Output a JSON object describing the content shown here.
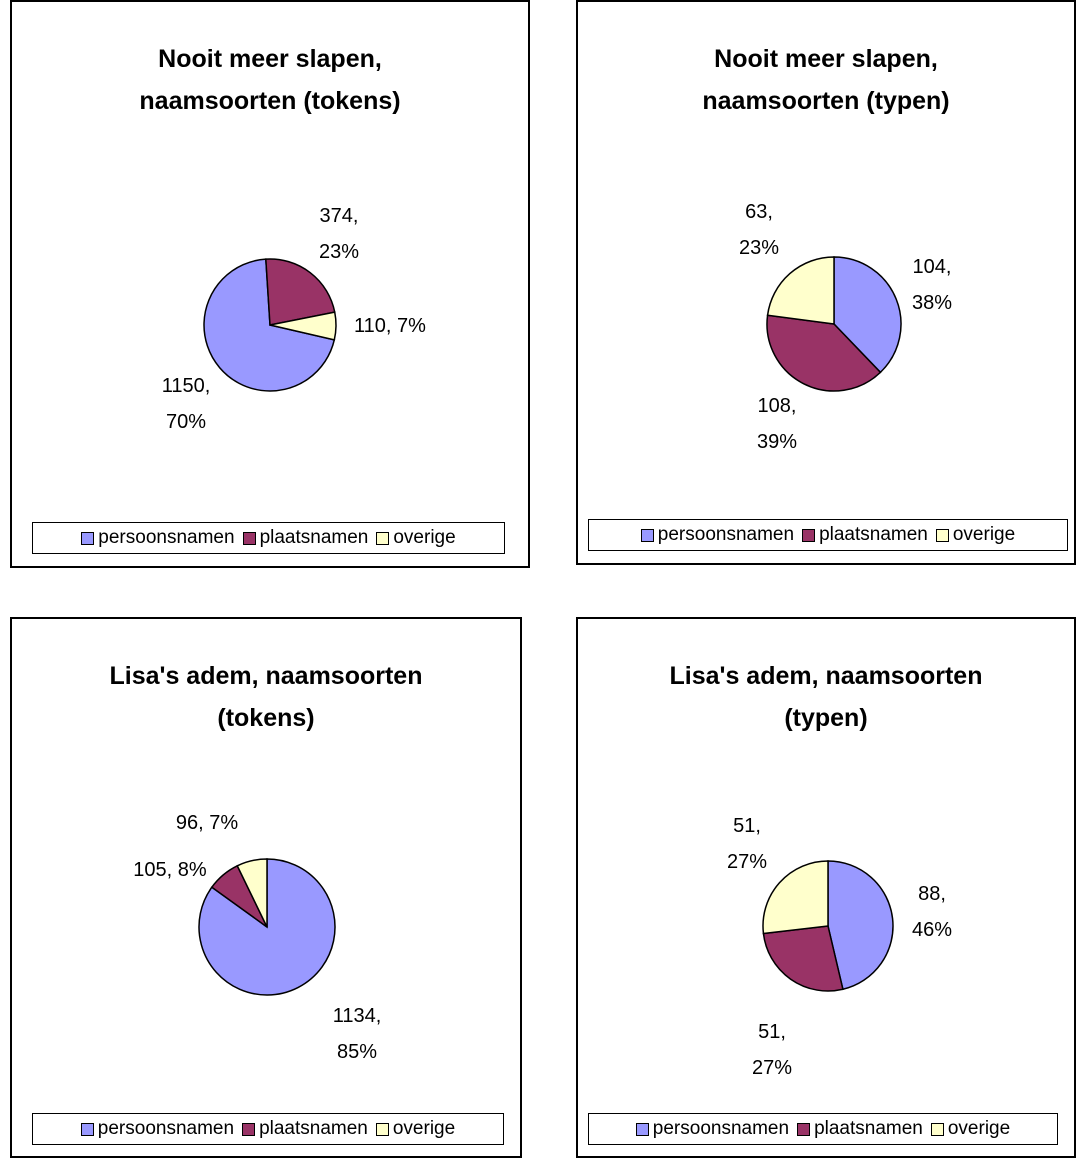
{
  "chart_data": [
    {
      "type": "pie",
      "title": "Nooit meer slapen, naamsoorten (tokens)",
      "categories": [
        "persoonsnamen",
        "plaatsnamen",
        "overige"
      ],
      "values": [
        1150,
        374,
        110
      ],
      "value_labels": [
        "1150, 70%",
        "374, 23%",
        "110, 7%"
      ],
      "colors": [
        "#9999ff",
        "#993366",
        "#ffffcc"
      ],
      "start_angle": 103,
      "legend": "bottom"
    },
    {
      "type": "pie",
      "title": "Nooit meer slapen, naamsoorten (typen)",
      "categories": [
        "persoonsnamen",
        "plaatsnamen",
        "overige"
      ],
      "values": [
        104,
        108,
        63
      ],
      "value_labels": [
        "104, 38%",
        "108, 39%",
        "63, 23%"
      ],
      "colors": [
        "#9999ff",
        "#993366",
        "#ffffcc"
      ],
      "start_angle": 0,
      "legend": "bottom"
    },
    {
      "type": "pie",
      "title": "Lisa's adem, naamsoorten (tokens)",
      "categories": [
        "persoonsnamen",
        "plaatsnamen",
        "overige"
      ],
      "values": [
        1134,
        105,
        96
      ],
      "value_labels": [
        "1134, 85%",
        "105, 8%",
        "96, 7%"
      ],
      "colors": [
        "#9999ff",
        "#993366",
        "#ffffcc"
      ],
      "start_angle": 0,
      "legend": "bottom"
    },
    {
      "type": "pie",
      "title": "Lisa's adem, naamsoorten (typen)",
      "categories": [
        "persoonsnamen",
        "plaatsnamen",
        "overige"
      ],
      "values": [
        88,
        51,
        51
      ],
      "value_labels": [
        "88, 46%",
        "51, 27%",
        "51, 27%"
      ],
      "colors": [
        "#9999ff",
        "#993366",
        "#ffffcc"
      ],
      "start_angle": 0,
      "legend": "bottom"
    }
  ]
}
